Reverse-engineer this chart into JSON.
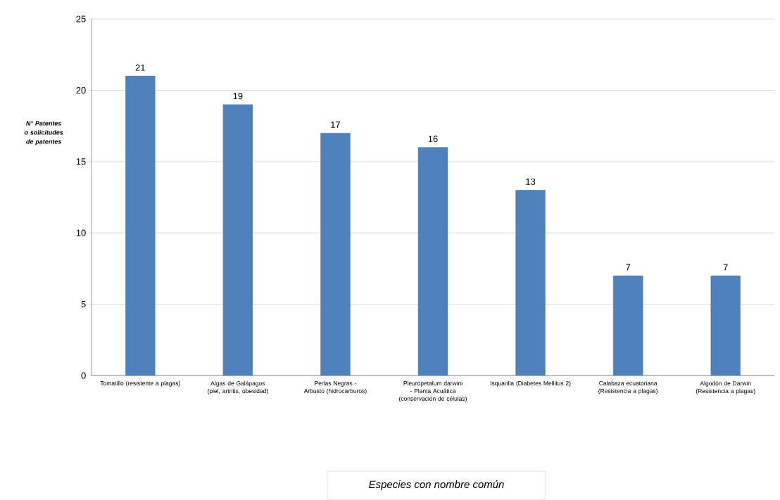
{
  "chart_data": {
    "type": "bar",
    "ylabel": "N° Patentes o solicitudes de patentes",
    "annotations": [
      "Especies con nombre común"
    ],
    "categories": [
      "Tomatillo (resistente a plagas)",
      "Algas de Galápagos (piel, artritis, obesidad)",
      "Perlas Negras - Arbusto (hidrocarburos)",
      "Pleuropetalum darwini - Planta Acuática (conservación de células)",
      "Isquarilla (Diabetes Mellitus 2)",
      "Calabaza ecuatoriana (Resistencia a plagas)",
      "Algodón de Darwin (Resistencia a plagas)"
    ],
    "values": [
      21,
      19,
      17,
      16,
      13,
      7,
      7
    ],
    "color": "#4f81bd",
    "ylim": [
      0,
      25
    ],
    "yticks": [
      0,
      5,
      10,
      15,
      20,
      25
    ],
    "grid": "y",
    "data_labels": true
  }
}
